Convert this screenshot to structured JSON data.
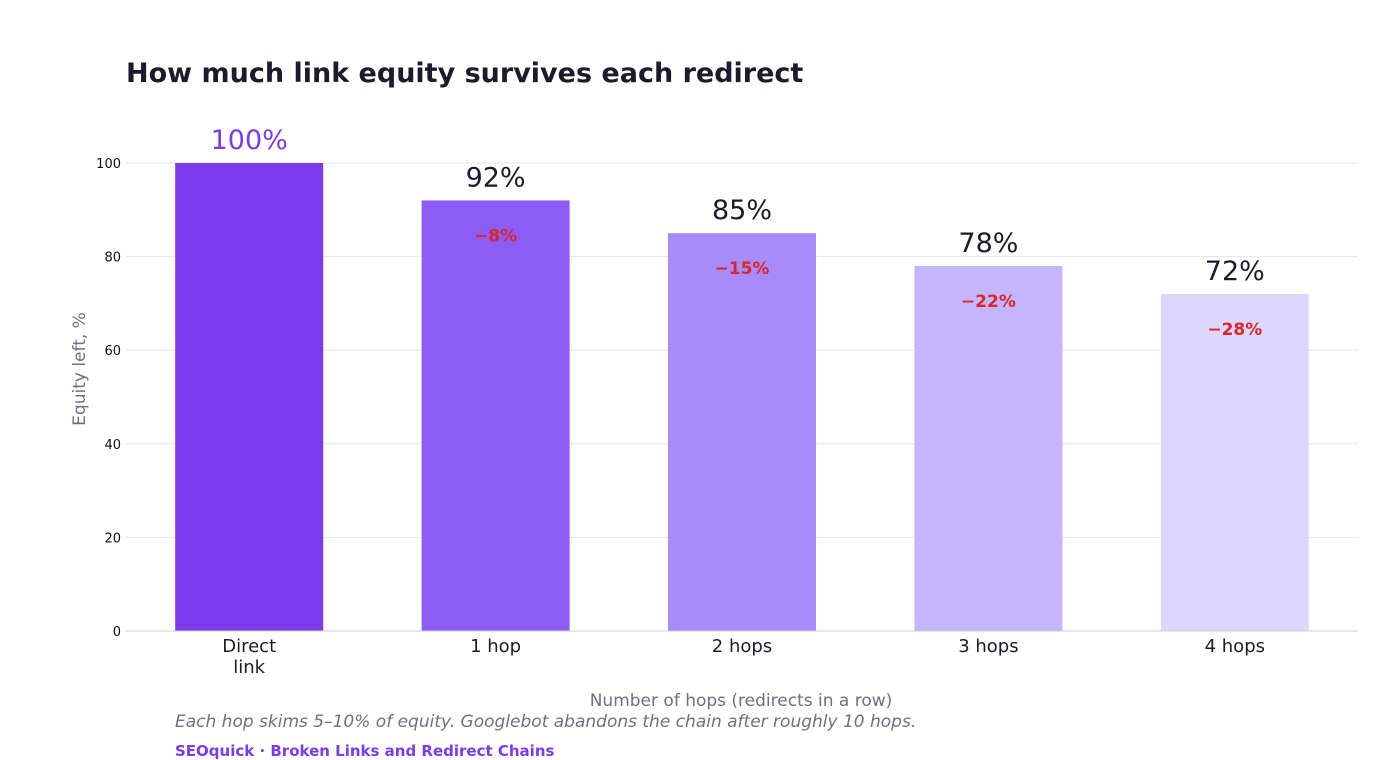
{
  "chart_data": {
    "type": "bar",
    "title": "How much link equity survives each redirect",
    "xlabel": "Number of hops (redirects in a row)",
    "ylabel": "Equity left, %",
    "ylim": [
      0,
      100
    ],
    "yticks": [
      0,
      20,
      40,
      60,
      80,
      100
    ],
    "grid": true,
    "categories": [
      "Direct link",
      "1 hop",
      "2 hops",
      "3 hops",
      "4 hops"
    ],
    "category_lines": [
      [
        "Direct",
        "link"
      ],
      [
        "1 hop"
      ],
      [
        "2 hops"
      ],
      [
        "3 hops"
      ],
      [
        "4 hops"
      ]
    ],
    "values": [
      100,
      92,
      85,
      78,
      72
    ],
    "value_labels": [
      "100%",
      "92%",
      "85%",
      "78%",
      "72%"
    ],
    "delta_labels": [
      "",
      "−8%",
      "−15%",
      "−22%",
      "−28%"
    ],
    "bar_colors": [
      "#7c3aed",
      "#8b5cf6",
      "#a78bfa",
      "#c4b5fd",
      "#ddd6fe"
    ],
    "value_label_colors": [
      "#7c3aed",
      "#1c1b2e",
      "#1c1b2e",
      "#1c1b2e",
      "#1c1b2e"
    ],
    "delta_color": "#dc2626"
  },
  "caption": "Each hop skims 5–10% of equity. Googlebot abandons the chain after roughly 10 hops.",
  "source": "SEOquick · Broken Links and Redirect Chains",
  "source_color": "#7c3aed"
}
